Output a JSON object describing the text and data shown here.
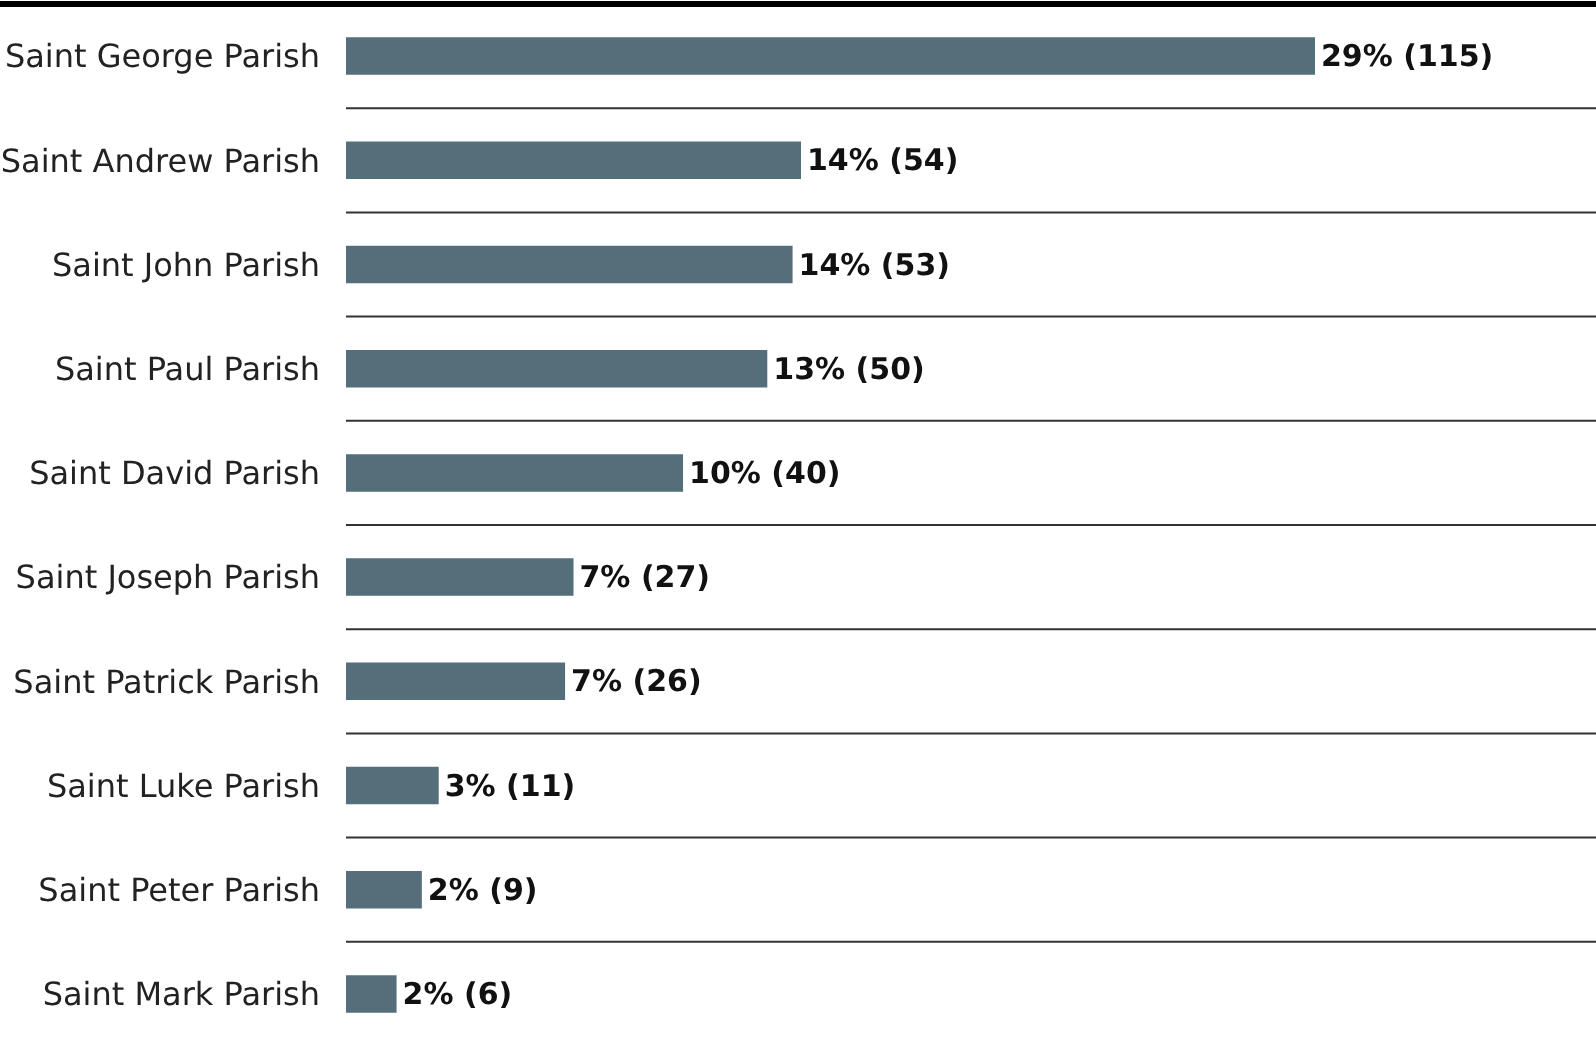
{
  "chart_data": {
    "type": "bar",
    "orientation": "horizontal",
    "categories": [
      "Saint George Parish",
      "Saint Andrew Parish",
      "Saint John Parish",
      "Saint Paul Parish",
      "Saint David Parish",
      "Saint Joseph Parish",
      "Saint Patrick Parish",
      "Saint Luke Parish",
      "Saint Peter Parish",
      "Saint Mark Parish"
    ],
    "values": [
      115,
      54,
      53,
      50,
      40,
      27,
      26,
      11,
      9,
      6
    ],
    "value_labels": [
      "29% (115)",
      "14% (54)",
      "14% (53)",
      "13% (50)",
      "10% (40)",
      "7% (27)",
      "7% (26)",
      "3% (11)",
      "2% (9)",
      "2% (6)"
    ],
    "color": "#546e7a",
    "grid": "y",
    "legend": false
  }
}
